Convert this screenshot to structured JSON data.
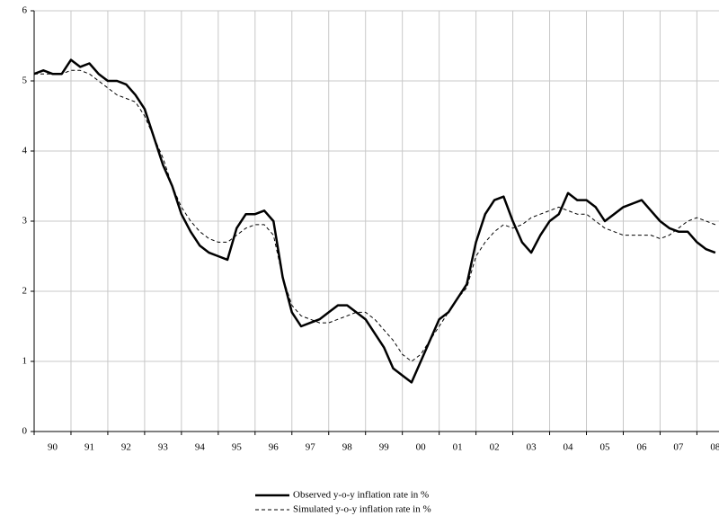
{
  "chart_data": {
    "type": "line",
    "x": [
      0,
      0.25,
      0.5,
      0.75,
      1,
      1.25,
      1.5,
      1.75,
      2,
      2.25,
      2.5,
      2.75,
      3,
      3.25,
      3.5,
      3.75,
      4,
      4.25,
      4.5,
      4.75,
      5,
      5.25,
      5.5,
      5.75,
      6,
      6.25,
      6.5,
      6.75,
      7,
      7.25,
      7.5,
      7.75,
      8,
      8.25,
      8.5,
      8.75,
      9,
      9.25,
      9.5,
      9.75,
      10,
      10.25,
      10.5,
      10.75,
      11,
      11.25,
      11.5,
      11.75,
      12,
      12.25,
      12.5,
      12.75,
      13,
      13.25,
      13.5,
      13.75,
      14,
      14.25,
      14.5,
      14.75,
      15,
      15.25,
      15.5,
      15.75,
      16,
      16.25,
      16.5,
      16.75,
      17,
      17.25,
      17.5,
      17.75,
      18,
      18.25,
      18.5
    ],
    "series": [
      {
        "name": "Observed y-o-y inflation rate in %",
        "color": "#000000",
        "dash": false,
        "values": [
          5.1,
          5.15,
          5.1,
          5.1,
          5.3,
          5.2,
          5.25,
          5.1,
          5.0,
          5.0,
          4.95,
          4.8,
          4.6,
          4.2,
          3.8,
          3.5,
          3.1,
          2.85,
          2.65,
          2.55,
          2.5,
          2.45,
          2.9,
          3.1,
          3.1,
          3.15,
          3.0,
          2.2,
          1.7,
          1.5,
          1.55,
          1.6,
          1.7,
          1.8,
          1.8,
          1.7,
          1.6,
          1.4,
          1.2,
          0.9,
          0.8,
          0.7,
          1.0,
          1.3,
          1.6,
          1.7,
          1.9,
          2.1,
          2.7,
          3.1,
          3.3,
          3.35,
          3.0,
          2.7,
          2.55,
          2.8,
          3.0,
          3.1,
          3.4,
          3.3,
          3.3,
          3.2,
          3.0,
          3.1,
          3.2,
          3.25,
          3.3,
          3.15,
          3.0,
          2.9,
          2.85,
          2.85,
          2.7,
          2.6,
          2.55
        ]
      },
      {
        "name": "Simulated y-o-y inflation rate in %",
        "color": "#000000",
        "dash": true,
        "values": [
          5.1,
          5.1,
          5.1,
          5.1,
          5.15,
          5.15,
          5.1,
          5.0,
          4.9,
          4.8,
          4.75,
          4.7,
          4.5,
          4.2,
          3.9,
          3.5,
          3.2,
          3.0,
          2.85,
          2.75,
          2.7,
          2.7,
          2.8,
          2.9,
          2.95,
          2.95,
          2.8,
          2.2,
          1.8,
          1.65,
          1.6,
          1.55,
          1.55,
          1.6,
          1.65,
          1.7,
          1.7,
          1.6,
          1.45,
          1.3,
          1.1,
          1.0,
          1.1,
          1.3,
          1.5,
          1.7,
          1.9,
          2.05,
          2.5,
          2.7,
          2.85,
          2.95,
          2.9,
          2.95,
          3.05,
          3.1,
          3.15,
          3.2,
          3.15,
          3.1,
          3.1,
          3.0,
          2.9,
          2.85,
          2.8,
          2.8,
          2.8,
          2.8,
          2.75,
          2.8,
          2.9,
          3.0,
          3.05,
          3.0,
          2.95
        ]
      }
    ],
    "xlim": [
      0,
      18.6
    ],
    "xticks": [
      {
        "value": 0.5,
        "label": "90"
      },
      {
        "value": 1.5,
        "label": "91"
      },
      {
        "value": 2.5,
        "label": "92"
      },
      {
        "value": 3.5,
        "label": "93"
      },
      {
        "value": 4.5,
        "label": "94"
      },
      {
        "value": 5.5,
        "label": "95"
      },
      {
        "value": 6.5,
        "label": "96"
      },
      {
        "value": 7.5,
        "label": "97"
      },
      {
        "value": 8.5,
        "label": "98"
      },
      {
        "value": 9.5,
        "label": "99"
      },
      {
        "value": 10.5,
        "label": "00"
      },
      {
        "value": 11.5,
        "label": "01"
      },
      {
        "value": 12.5,
        "label": "02"
      },
      {
        "value": 13.5,
        "label": "03"
      },
      {
        "value": 14.5,
        "label": "04"
      },
      {
        "value": 15.5,
        "label": "05"
      },
      {
        "value": 16.5,
        "label": "06"
      },
      {
        "value": 17.5,
        "label": "07"
      },
      {
        "value": 18.5,
        "label": "08"
      }
    ],
    "ylim": [
      0,
      6
    ],
    "yticks": [
      0,
      1,
      2,
      3,
      4,
      5,
      6
    ],
    "grid": true
  }
}
